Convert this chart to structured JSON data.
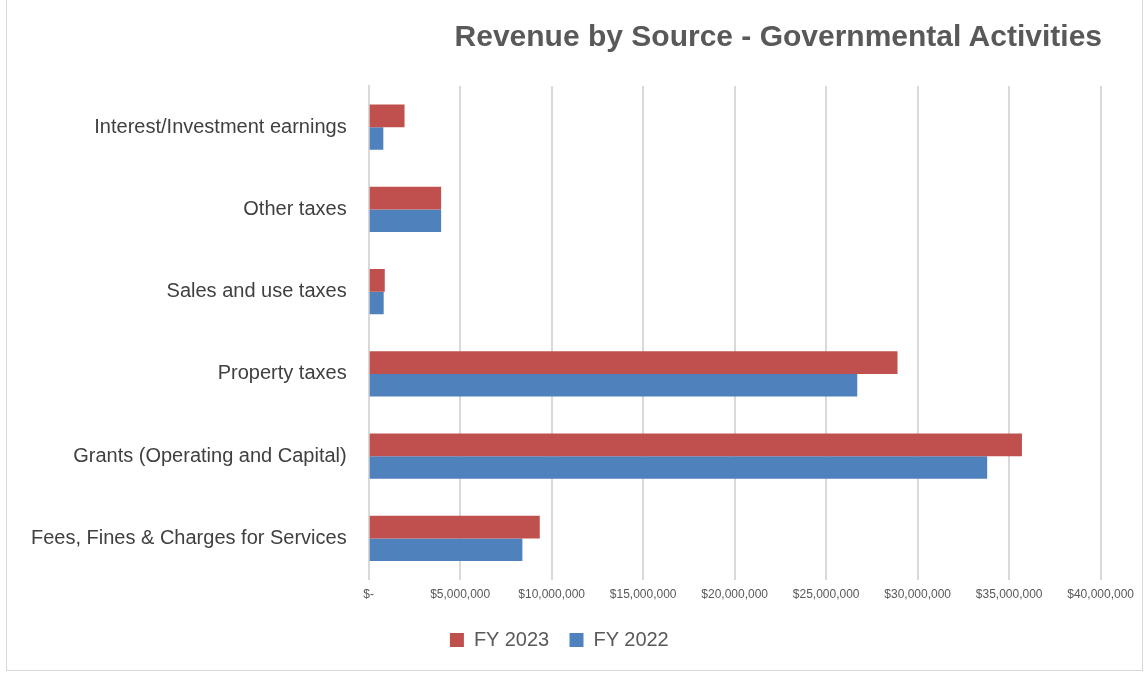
{
  "chart_data": {
    "type": "bar",
    "orientation": "horizontal",
    "title": "Revenue by Source - Governmental Activities",
    "categories": [
      "Interest/Investment earnings",
      "Other taxes",
      "Sales and use taxes",
      "Property taxes",
      "Grants (Operating and Capital)",
      "Fees, Fines & Charges for Services"
    ],
    "series": [
      {
        "name": "FY 2023",
        "color": "#c0504d",
        "values": [
          1960000,
          3960000,
          880000,
          28900000,
          35700000,
          9350000
        ]
      },
      {
        "name": "FY 2022",
        "color": "#4f81bd",
        "values": [
          800000,
          3960000,
          820000,
          26700000,
          33800000,
          8400000
        ]
      }
    ],
    "xlim": [
      0,
      40000000
    ],
    "xticks": [
      {
        "value": 0,
        "label": "$-"
      },
      {
        "value": 5000000,
        "label": "$5,000,000"
      },
      {
        "value": 10000000,
        "label": "$10,000,000"
      },
      {
        "value": 15000000,
        "label": "$15,000,000"
      },
      {
        "value": 20000000,
        "label": "$20,000,000"
      },
      {
        "value": 25000000,
        "label": "$25,000,000"
      },
      {
        "value": 30000000,
        "label": "$30,000,000"
      },
      {
        "value": 35000000,
        "label": "$35,000,000"
      },
      {
        "value": 40000000,
        "label": "$40,000,000"
      }
    ],
    "grid": "x",
    "legend": "bottom"
  }
}
